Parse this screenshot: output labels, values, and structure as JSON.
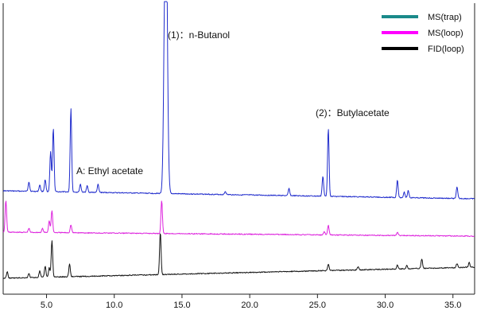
{
  "chart_data": {
    "type": "line",
    "title": "",
    "xlabel": "",
    "ylabel": "",
    "xlim": [
      1.8,
      36.6
    ],
    "ylim": [
      0,
      405
    ],
    "grid": false,
    "legend_position": "top-right",
    "x_ticks": [
      5.0,
      10.0,
      15.0,
      20.0,
      25.0,
      30.0,
      35.0
    ],
    "x_tick_labels": [
      "5.0",
      "10.0",
      "15.0",
      "20.0",
      "25.0",
      "30.0",
      "35.0"
    ],
    "series": [
      {
        "name": "MS(trap)",
        "color": "#1a8a8a",
        "display_color": "#1f2bcc",
        "baseline_start": 240,
        "baseline_end": 250,
        "peaks": [
          {
            "x": 3.7,
            "h": 12
          },
          {
            "x": 4.5,
            "h": 8
          },
          {
            "x": 4.9,
            "h": 15
          },
          {
            "x": 5.3,
            "h": 50
          },
          {
            "x": 5.5,
            "h": 80
          },
          {
            "x": 6.8,
            "h": 105
          },
          {
            "x": 7.5,
            "h": 10
          },
          {
            "x": 8.0,
            "h": 8
          },
          {
            "x": 8.8,
            "h": 10
          },
          {
            "x": 13.8,
            "h": 395
          },
          {
            "x": 18.2,
            "h": 4
          },
          {
            "x": 22.9,
            "h": 9
          },
          {
            "x": 25.4,
            "h": 25
          },
          {
            "x": 25.8,
            "h": 86
          },
          {
            "x": 30.9,
            "h": 22
          },
          {
            "x": 31.4,
            "h": 7
          },
          {
            "x": 31.7,
            "h": 9
          },
          {
            "x": 35.3,
            "h": 14
          }
        ]
      },
      {
        "name": "MS(loop)",
        "color": "#ff00ff",
        "display_color": "#dd22dd",
        "baseline_start": 292,
        "baseline_end": 297,
        "peaks": [
          {
            "x": 2.0,
            "h": 40
          },
          {
            "x": 3.7,
            "h": 5
          },
          {
            "x": 4.7,
            "h": 5
          },
          {
            "x": 5.2,
            "h": 15
          },
          {
            "x": 5.4,
            "h": 28
          },
          {
            "x": 6.8,
            "h": 10
          },
          {
            "x": 13.5,
            "h": 42
          },
          {
            "x": 25.5,
            "h": 4
          },
          {
            "x": 25.8,
            "h": 12
          },
          {
            "x": 30.9,
            "h": 4
          }
        ]
      },
      {
        "name": "FID(loop)",
        "color": "#000000",
        "display_color": "#111111",
        "baseline_start": 350,
        "baseline_end": 336,
        "peaks": [
          {
            "x": 2.1,
            "h": 8
          },
          {
            "x": 3.7,
            "h": 5
          },
          {
            "x": 4.5,
            "h": 8
          },
          {
            "x": 4.9,
            "h": 14
          },
          {
            "x": 5.2,
            "h": 12
          },
          {
            "x": 5.4,
            "h": 46
          },
          {
            "x": 6.7,
            "h": 16
          },
          {
            "x": 13.4,
            "h": 53
          },
          {
            "x": 25.8,
            "h": 8
          },
          {
            "x": 28.0,
            "h": 4
          },
          {
            "x": 30.9,
            "h": 5
          },
          {
            "x": 31.6,
            "h": 4
          },
          {
            "x": 32.7,
            "h": 12
          },
          {
            "x": 35.3,
            "h": 5
          },
          {
            "x": 36.2,
            "h": 6
          }
        ]
      }
    ],
    "annotations": [
      {
        "text": "(1)：n-Butanol"
      },
      {
        "text": "(2)：Butylacetate"
      },
      {
        "text": "A:  Ethyl acetate"
      }
    ]
  }
}
